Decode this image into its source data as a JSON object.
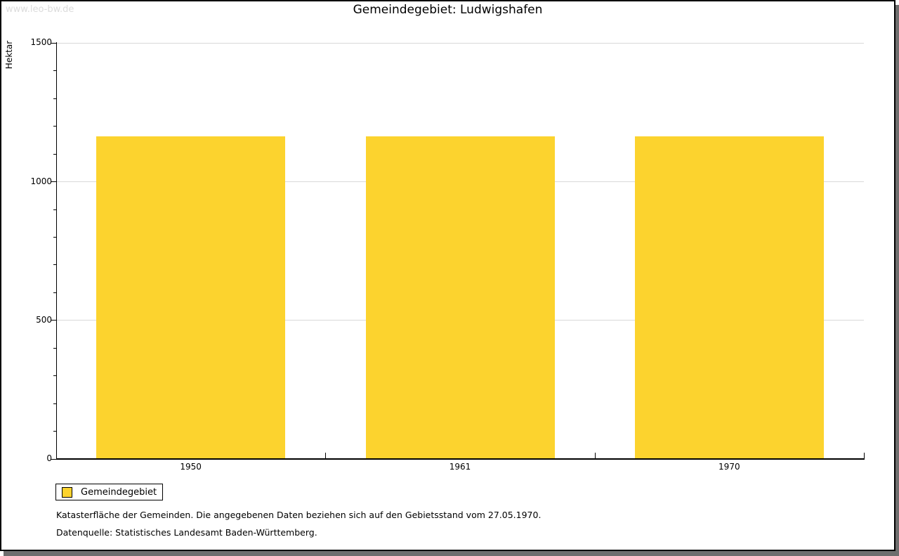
{
  "watermark": "www.leo-bw.de",
  "header": {
    "title": "Gemeindegebiet: Ludwigshafen"
  },
  "chart_data": {
    "type": "bar",
    "title": "Gemeindegebiet: Ludwigshafen",
    "ylabel": "Hektar",
    "xlabel": "",
    "categories": [
      "1950",
      "1961",
      "1970"
    ],
    "series": [
      {
        "name": "Gemeindegebiet",
        "color": "#fcd32e",
        "values": [
          1162,
          1162,
          1162
        ]
      }
    ],
    "ylim": [
      0,
      1500
    ],
    "yticks": [
      0,
      500,
      1000,
      1500
    ],
    "minor_tick_step": 100,
    "grid": "horizontal-major",
    "legend_position": "bottom-left"
  },
  "legend": {
    "items": [
      {
        "label": "Gemeindegebiet",
        "color": "#fcd32e"
      }
    ]
  },
  "footnotes": {
    "line1": "Katasterfläche der Gemeinden. Die angegebenen Daten beziehen sich auf den Gebietsstand vom 27.05.1970.",
    "line2": "Datenquelle: Statistisches Landesamt Baden-Württemberg."
  },
  "colors": {
    "bar": "#fcd32e",
    "grid": "#d9d9d9",
    "axis": "#000000",
    "watermark": "#dcdcdc",
    "frame_border": "#000000",
    "frame_shadow": "#6e6e6e"
  }
}
